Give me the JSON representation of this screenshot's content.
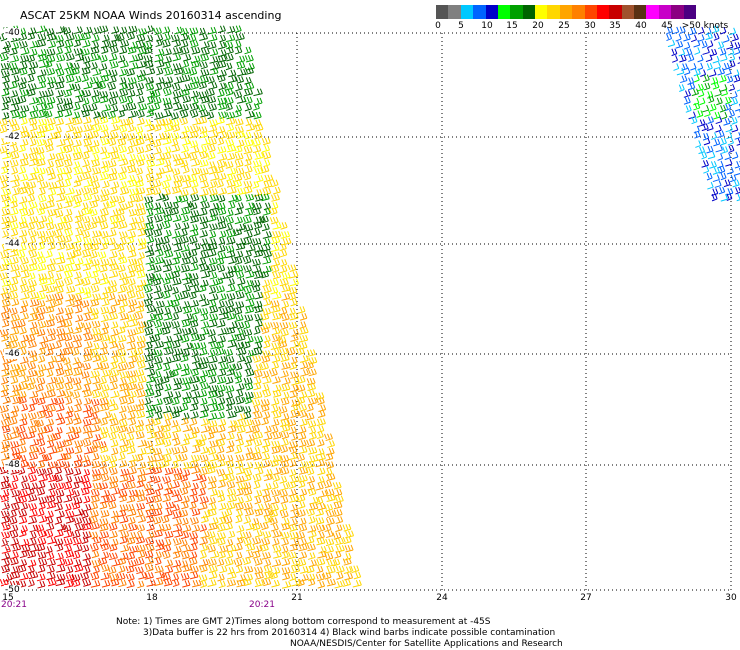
{
  "title": "ASCAT 25KM NOAA Winds 20160314 ascending",
  "colorbar": {
    "colors": [
      "#555555",
      "#808080",
      "#00c8ff",
      "#0064ff",
      "#0000c8",
      "#00ff00",
      "#00a000",
      "#006400",
      "#ffff00",
      "#ffd700",
      "#ffa500",
      "#ff8000",
      "#ff4500",
      "#ff0000",
      "#c80000",
      "#a0522d",
      "#5a3214",
      "#ff00ff",
      "#c800c8",
      "#8b0082",
      "#4b0082"
    ],
    "labels": [
      "0",
      "5",
      "10",
      "15",
      "20",
      "25",
      "30",
      "35",
      "40",
      "45",
      ">50 knots"
    ]
  },
  "lat_labels": [
    "-40",
    "-42",
    "-44",
    "-46",
    "-48",
    "-50"
  ],
  "lon_labels": [
    "15",
    "18",
    "21",
    "24",
    "27",
    "30"
  ],
  "time_labels": [
    "20:21",
    "20:21"
  ],
  "notes": [
    "Note: 1) Times are GMT 2)Times along bottom correspond to measurement at -45S",
    "3)Data buffer is 22 hrs from 20160314 4) Black wind barbs indicate possible contamination",
    "NOAA/NESDIS/Center for Satellite Applications and Research"
  ]
}
